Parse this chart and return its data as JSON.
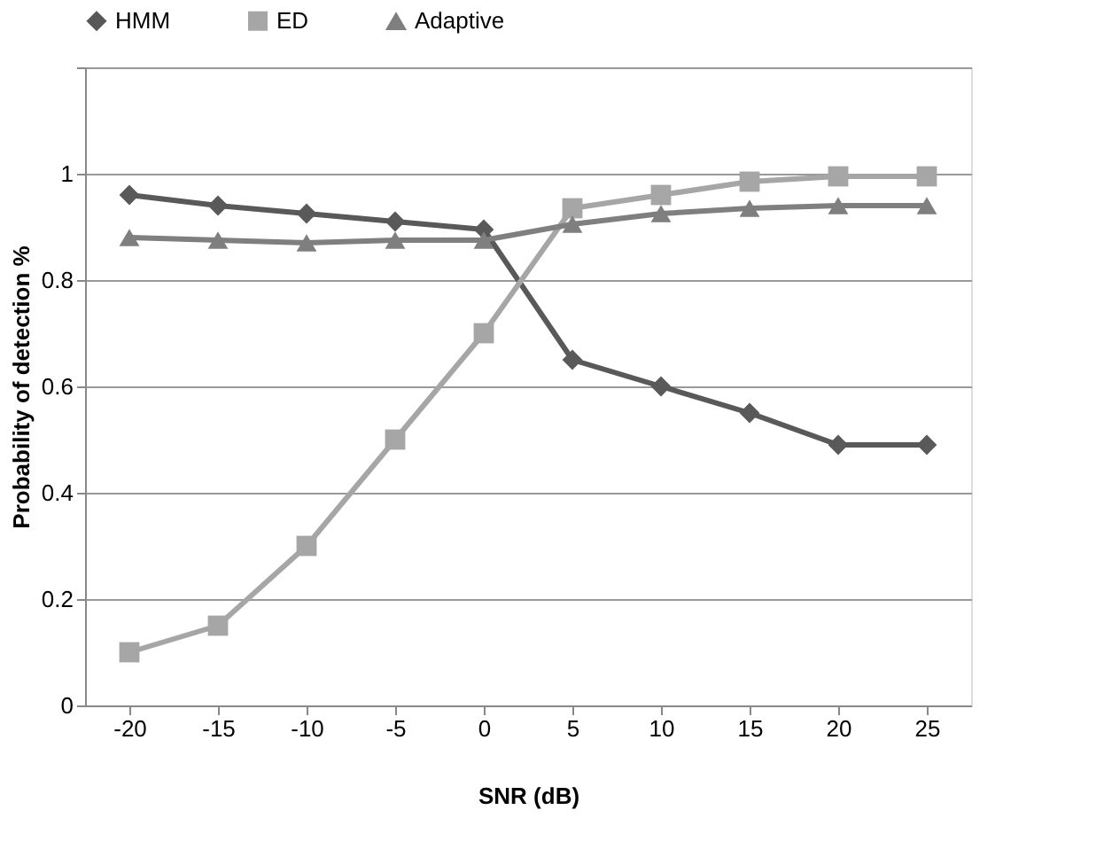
{
  "chart_data": {
    "type": "line",
    "xlabel": "SNR (dB)",
    "ylabel": "Probability of detection %",
    "categories": [
      "-20",
      "-15",
      "-10",
      "-5",
      "0",
      "5",
      "10",
      "15",
      "20",
      "25"
    ],
    "series": [
      {
        "name": "HMM",
        "color": "#595959",
        "marker": "diamond",
        "values": [
          0.96,
          0.94,
          0.925,
          0.91,
          0.895,
          0.65,
          0.6,
          0.55,
          0.49,
          0.49
        ]
      },
      {
        "name": "ED",
        "color": "#a6a6a6",
        "marker": "square",
        "values": [
          0.1,
          0.15,
          0.3,
          0.5,
          0.7,
          0.935,
          0.96,
          0.985,
          0.995,
          0.995
        ]
      },
      {
        "name": "Adaptive",
        "color": "#7f7f7f",
        "marker": "triangle",
        "values": [
          0.88,
          0.875,
          0.87,
          0.875,
          0.875,
          0.905,
          0.925,
          0.935,
          0.94,
          0.94
        ]
      }
    ],
    "ylim": [
      0,
      1.2
    ],
    "yticks": [
      0,
      0.2,
      0.4,
      0.6,
      0.8,
      1,
      {
        "value": 1.2,
        "label": null
      }
    ],
    "grid": "y",
    "legend": "top",
    "line_style": "solid"
  }
}
